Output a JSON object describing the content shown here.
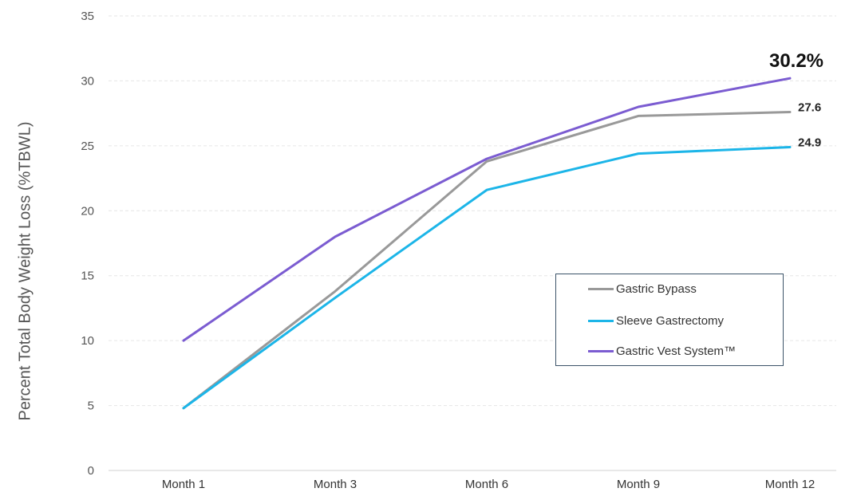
{
  "chart_data": {
    "type": "line",
    "categories": [
      "Month 1",
      "Month 3",
      "Month 6",
      "Month 9",
      "Month 12"
    ],
    "ylabel": "Percent Total Body Weight Loss (%TBWL)",
    "ylim": [
      0,
      35
    ],
    "yticks": [
      0,
      5,
      10,
      15,
      20,
      25,
      30,
      35
    ],
    "grid": true,
    "legend_position": "center-right",
    "series": [
      {
        "name": "Gastric Bypass",
        "values": [
          4.8,
          13.8,
          23.8,
          27.3,
          27.6
        ],
        "color": "#999999"
      },
      {
        "name": "Sleeve Gastrectomy",
        "values": [
          4.8,
          13.3,
          21.6,
          24.4,
          24.9
        ],
        "color": "#1cb5e8"
      },
      {
        "name": "Gastric Vest System™",
        "values": [
          10.0,
          18.0,
          24.0,
          28.0,
          30.2
        ],
        "color": "#7b5cd1"
      }
    ],
    "annotations": [
      {
        "text": "30.2%",
        "series": 2,
        "index": 4
      },
      {
        "text": "27.6",
        "series": 0,
        "index": 4
      },
      {
        "text": "24.9",
        "series": 1,
        "index": 4
      }
    ]
  }
}
